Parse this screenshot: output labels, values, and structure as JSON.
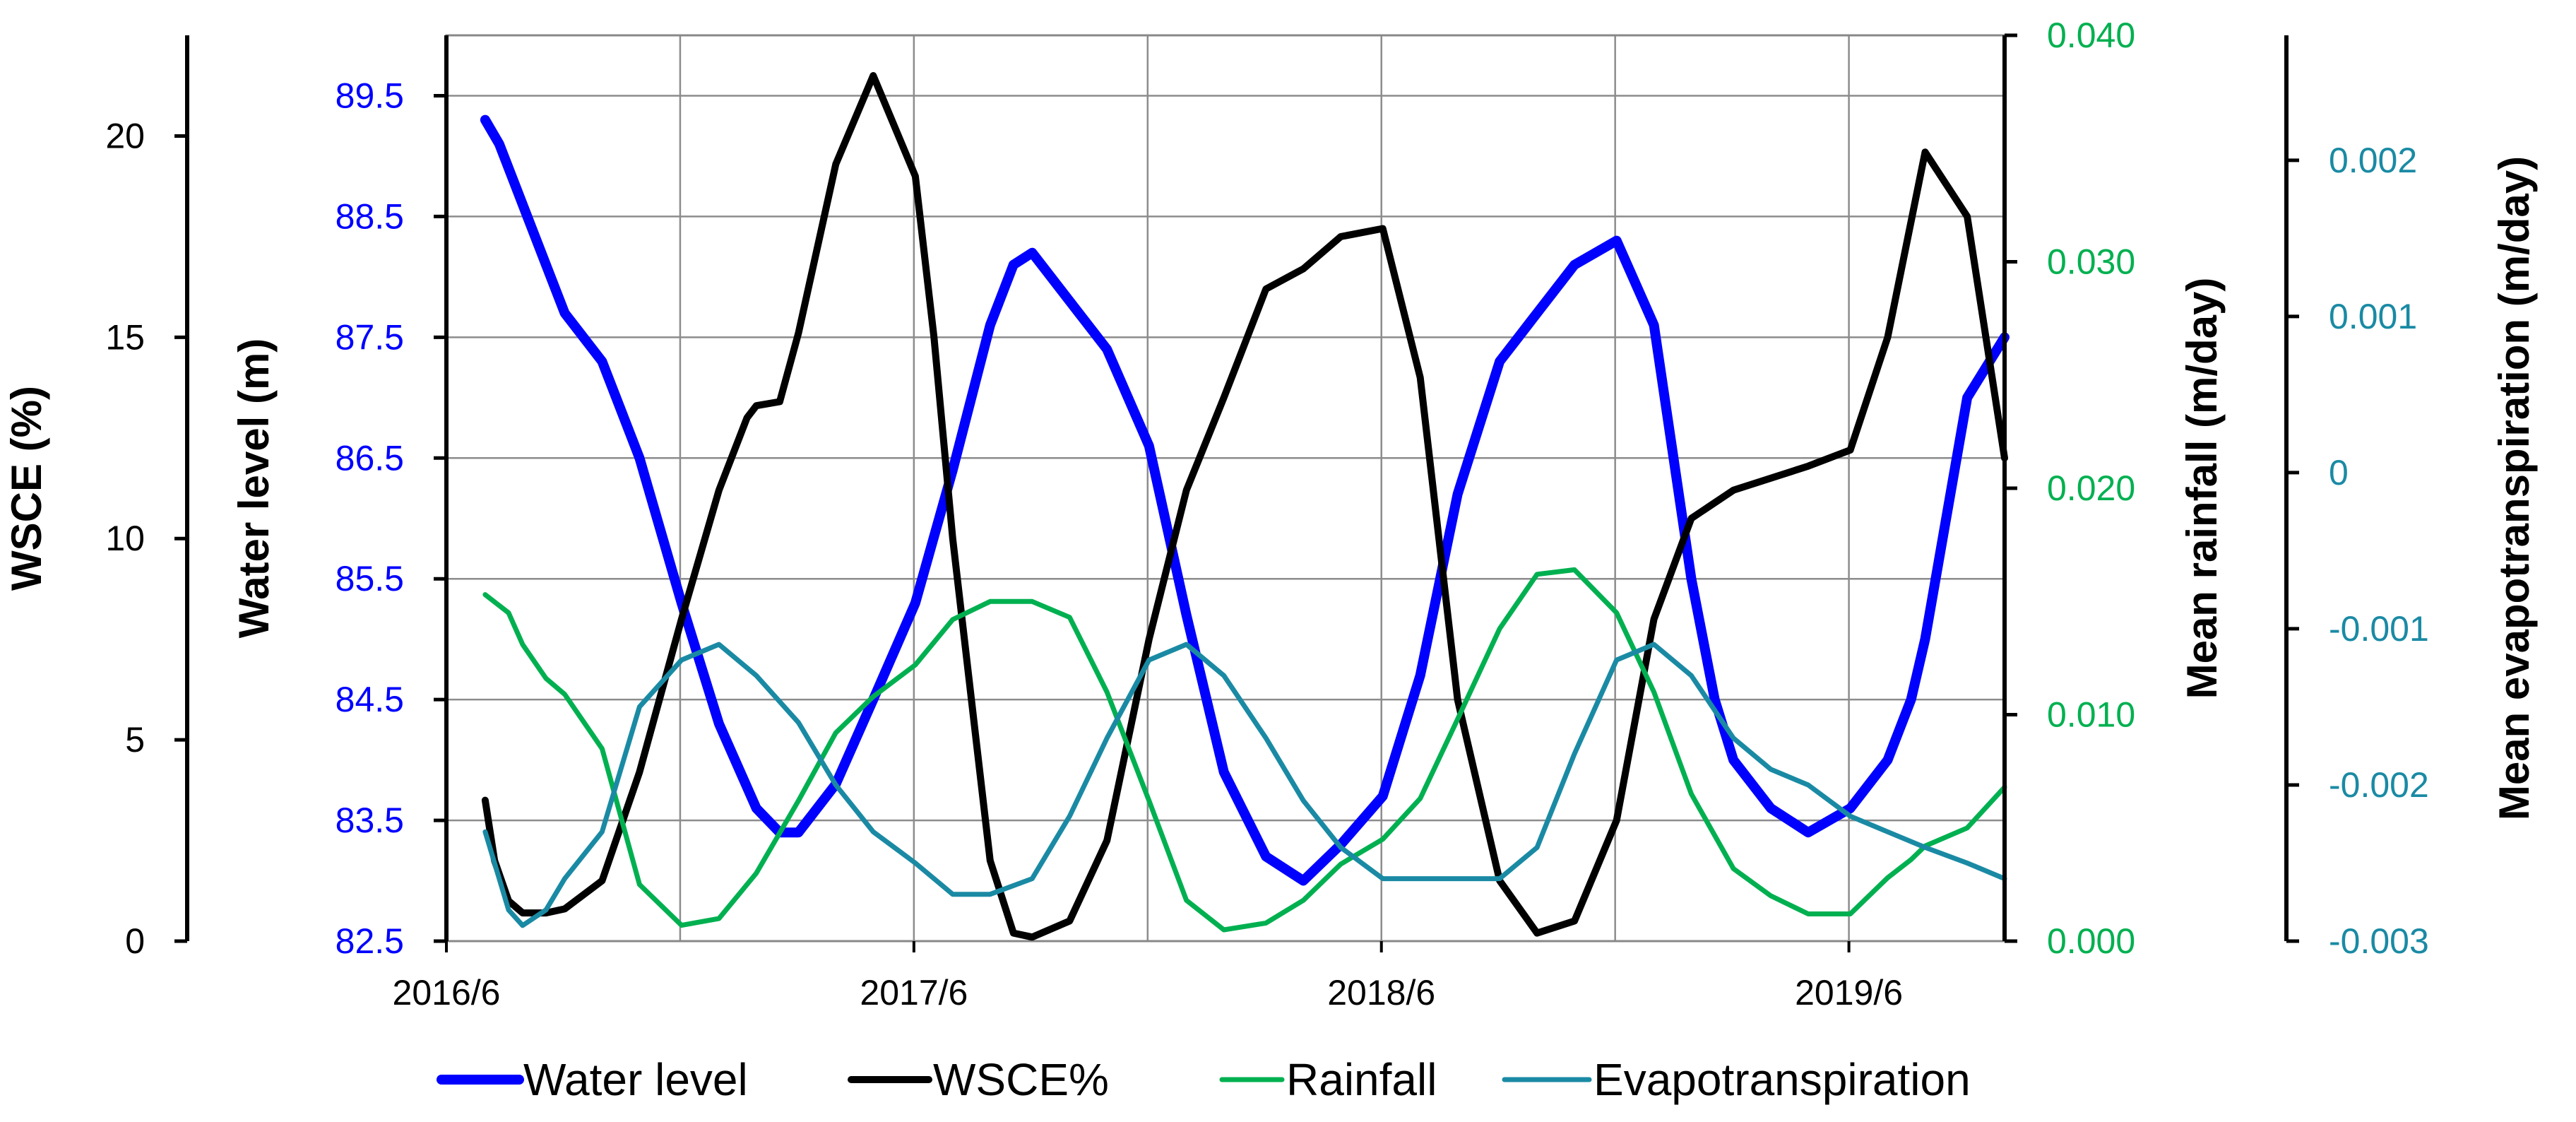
{
  "chart_data": {
    "type": "line",
    "title": "",
    "x": {
      "label": "",
      "tick_labels": [
        "2016/6",
        "2017/6",
        "2018/6",
        "2019/6"
      ],
      "tick_times": [
        2016.417,
        2017.417,
        2018.417,
        2019.417
      ],
      "range": [
        2016.417,
        2019.75
      ],
      "grid_times": [
        2016.917,
        2017.417,
        2017.917,
        2018.417,
        2018.917,
        2019.417
      ]
    },
    "axes": {
      "wsce": {
        "label": "WSCE (%)",
        "ticks": [
          "0",
          "5",
          "10",
          "15",
          "20"
        ],
        "tick_values": [
          0,
          5,
          10,
          15,
          20
        ],
        "range": [
          0,
          22.5
        ],
        "color": "#000000"
      },
      "water_level": {
        "label": "Water level (m)",
        "ticks": [
          "82.5",
          "83.5",
          "84.5",
          "85.5",
          "86.5",
          "87.5",
          "88.5",
          "89.5"
        ],
        "tick_values": [
          82.5,
          83.5,
          84.5,
          85.5,
          86.5,
          87.5,
          88.5,
          89.5
        ],
        "range": [
          82.5,
          90.0
        ],
        "color": "#0000ff"
      },
      "rainfall": {
        "label": "Mean rainfall (m/day)",
        "ticks": [
          "0.000",
          "0.010",
          "0.020",
          "0.030",
          "0.040"
        ],
        "tick_values": [
          0.0,
          0.01,
          0.02,
          0.03,
          0.04
        ],
        "range": [
          0.0,
          0.04
        ],
        "color": "#00b050"
      },
      "evapotranspiration": {
        "label": "Mean evapotranspiration (m/day)",
        "ticks": [
          "-0.003",
          "-0.002",
          "-0.001",
          "0",
          "0.001",
          "0.002"
        ],
        "tick_values": [
          -0.003,
          -0.002,
          -0.001,
          0,
          0.001,
          0.002
        ],
        "range": [
          -0.003,
          0.0028
        ],
        "color": "#1a8aa4"
      }
    },
    "series": [
      {
        "name": "Water level",
        "axis": "water_level",
        "color": "#0000ff",
        "width": 14,
        "x": [
          2016.5,
          2016.53,
          2016.58,
          2016.63,
          2016.67,
          2016.75,
          2016.83,
          2016.92,
          2017.0,
          2017.08,
          2017.13,
          2017.17,
          2017.25,
          2017.33,
          2017.42,
          2017.5,
          2017.58,
          2017.63,
          2017.67,
          2017.75,
          2017.83,
          2017.92,
          2018.0,
          2018.08,
          2018.17,
          2018.25,
          2018.33,
          2018.42,
          2018.5,
          2018.58,
          2018.67,
          2018.71,
          2018.75,
          2018.83,
          2018.92,
          2019.0,
          2019.08,
          2019.13,
          2019.17,
          2019.25,
          2019.33,
          2019.42,
          2019.5,
          2019.55,
          2019.58,
          2019.67,
          2019.75
        ],
        "values": [
          89.3,
          89.1,
          88.6,
          88.1,
          87.7,
          87.3,
          86.5,
          85.3,
          84.3,
          83.6,
          83.4,
          83.4,
          83.8,
          84.5,
          85.3,
          86.4,
          87.6,
          88.1,
          88.2,
          87.8,
          87.4,
          86.6,
          85.2,
          83.9,
          83.2,
          83.0,
          83.3,
          83.7,
          84.7,
          86.2,
          87.3,
          87.5,
          87.7,
          88.1,
          88.3,
          87.6,
          85.5,
          84.5,
          84.0,
          83.6,
          83.4,
          83.6,
          84.0,
          84.5,
          85.0,
          87.0,
          87.5
        ]
      },
      {
        "name": "WSCE%",
        "axis": "wsce",
        "color": "#000000",
        "width": 10,
        "x": [
          2016.5,
          2016.52,
          2016.55,
          2016.58,
          2016.63,
          2016.67,
          2016.75,
          2016.83,
          2016.92,
          2017.0,
          2017.06,
          2017.08,
          2017.13,
          2017.17,
          2017.25,
          2017.33,
          2017.42,
          2017.46,
          2017.5,
          2017.55,
          2017.58,
          2017.63,
          2017.67,
          2017.75,
          2017.83,
          2017.92,
          2018.0,
          2018.08,
          2018.17,
          2018.25,
          2018.33,
          2018.42,
          2018.5,
          2018.58,
          2018.67,
          2018.75,
          2018.83,
          2018.92,
          2019.0,
          2019.08,
          2019.17,
          2019.25,
          2019.33,
          2019.42,
          2019.5,
          2019.58,
          2019.67,
          2019.75
        ],
        "values": [
          3.5,
          2.0,
          1.0,
          0.7,
          0.7,
          0.8,
          1.5,
          4.2,
          8.0,
          11.2,
          13.0,
          13.3,
          13.4,
          15.1,
          19.3,
          21.5,
          19.0,
          15.0,
          10.0,
          5.0,
          2.0,
          0.2,
          0.1,
          0.5,
          2.5,
          7.5,
          11.2,
          13.5,
          16.2,
          16.7,
          17.5,
          17.7,
          14.0,
          6.0,
          1.5,
          0.2,
          0.5,
          3.0,
          8.0,
          10.5,
          11.2,
          11.5,
          11.8,
          12.2,
          15.0,
          19.6,
          18.0,
          12.0
        ]
      },
      {
        "name": "Rainfall",
        "axis": "rainfall",
        "color": "#00b050",
        "width": 7,
        "x": [
          2016.5,
          2016.55,
          2016.58,
          2016.63,
          2016.67,
          2016.75,
          2016.83,
          2016.92,
          2017.0,
          2017.08,
          2017.17,
          2017.25,
          2017.33,
          2017.42,
          2017.5,
          2017.58,
          2017.67,
          2017.75,
          2017.83,
          2017.92,
          2018.0,
          2018.08,
          2018.17,
          2018.25,
          2018.33,
          2018.42,
          2018.5,
          2018.58,
          2018.67,
          2018.75,
          2018.83,
          2018.92,
          2019.0,
          2019.08,
          2019.17,
          2019.25,
          2019.33,
          2019.42,
          2019.5,
          2019.55,
          2019.58,
          2019.67,
          2019.75
        ],
        "values": [
          0.0153,
          0.0145,
          0.0131,
          0.0116,
          0.0109,
          0.0085,
          0.0025,
          0.0007,
          0.001,
          0.003,
          0.0062,
          0.0092,
          0.0108,
          0.0122,
          0.0142,
          0.015,
          0.015,
          0.0143,
          0.011,
          0.0062,
          0.0018,
          0.0005,
          0.0008,
          0.0018,
          0.0034,
          0.0045,
          0.0063,
          0.0098,
          0.0138,
          0.0162,
          0.0164,
          0.0145,
          0.011,
          0.0065,
          0.0032,
          0.002,
          0.0012,
          0.0012,
          0.0028,
          0.0036,
          0.0042,
          0.005,
          0.0068
        ]
      },
      {
        "name": "Evapotranspiration",
        "axis": "evapotranspiration",
        "color": "#1a8aa4",
        "width": 7,
        "x": [
          2016.5,
          2016.55,
          2016.58,
          2016.63,
          2016.67,
          2016.75,
          2016.83,
          2016.92,
          2017.0,
          2017.08,
          2017.17,
          2017.25,
          2017.33,
          2017.42,
          2017.5,
          2017.58,
          2017.67,
          2017.75,
          2017.83,
          2017.92,
          2018.0,
          2018.08,
          2018.17,
          2018.25,
          2018.33,
          2018.42,
          2018.5,
          2018.58,
          2018.67,
          2018.75,
          2018.83,
          2018.92,
          2019.0,
          2019.08,
          2019.17,
          2019.25,
          2019.33,
          2019.42,
          2019.5,
          2019.58,
          2019.67,
          2019.75
        ],
        "values": [
          -0.0023,
          -0.0028,
          -0.0029,
          -0.0028,
          -0.0026,
          -0.0023,
          -0.0015,
          -0.0012,
          -0.0011,
          -0.0013,
          -0.0016,
          -0.002,
          -0.0023,
          -0.0025,
          -0.0027,
          -0.0027,
          -0.0026,
          -0.0022,
          -0.0017,
          -0.0012,
          -0.0011,
          -0.0013,
          -0.0017,
          -0.0021,
          -0.0024,
          -0.0026,
          -0.0026,
          -0.0026,
          -0.0026,
          -0.0024,
          -0.0018,
          -0.0012,
          -0.0011,
          -0.0013,
          -0.0017,
          -0.0019,
          -0.002,
          -0.0022,
          -0.0023,
          -0.0024,
          -0.0025,
          -0.0026
        ]
      }
    ],
    "legend": {
      "position": "bottom",
      "entries": [
        "Water level",
        "WSCE%",
        "Rainfall",
        "Evapotranspiration"
      ]
    }
  }
}
